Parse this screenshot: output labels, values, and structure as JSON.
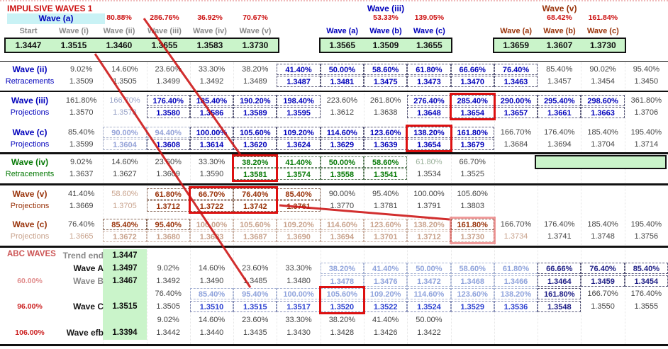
{
  "title": "IMPULSIVE WAVES 1",
  "colors": {
    "accent_red": "#cc1111",
    "blue": "#0000bb",
    "green": "#077a07",
    "brown": "#99330a",
    "green_bg": "#caf4ca",
    "cyan_bg": "#c9f2f5",
    "box_red": "#dd1111"
  },
  "top": {
    "waveA": {
      "label": "Wave (a)"
    },
    "group1": {
      "ratios": [
        "",
        "",
        "80.88%",
        "286.76%",
        "36.92%",
        "70.67%"
      ],
      "headers": [
        "Start",
        "Wave (i)",
        "Wave (ii)",
        "Wave (iii)",
        "Wave (iv)",
        "Wave (v)"
      ],
      "values": [
        "1.3447",
        "1.3515",
        "1.3460",
        "1.3655",
        "1.3583",
        "1.3730"
      ]
    },
    "group2": {
      "title": "Wave (iii)",
      "ratios": [
        "",
        "53.33%",
        "139.05%"
      ],
      "headers": [
        "Wave (a)",
        "Wave (b)",
        "Wave (c)"
      ],
      "values": [
        "1.3565",
        "1.3509",
        "1.3655"
      ]
    },
    "group3": {
      "title": "Wave (v)",
      "ratios": [
        "",
        "68.42%",
        "161.84%"
      ],
      "headers": [
        "Wave (a)",
        "Wave (b)",
        "Wave (c)"
      ],
      "values": [
        "1.3659",
        "1.3607",
        "1.3730"
      ]
    }
  },
  "sections": [
    {
      "label": "Wave (ii)",
      "sub": "Retracements",
      "theme": "blue",
      "pcts": [
        "9.02%",
        "14.60%",
        "23.60%",
        "33.30%",
        "38.20%",
        "41.40%",
        "50.00%",
        "58.60%",
        "61.80%",
        "66.66%",
        "76.40%",
        "85.40%",
        "90.02%",
        "95.40%"
      ],
      "pstyles": [
        "p",
        "p",
        "p",
        "p",
        "p",
        "b",
        "b",
        "b",
        "b",
        "b",
        "b",
        "p",
        "p",
        "p"
      ],
      "vals": [
        "1.3509",
        "1.3505",
        "1.3499",
        "1.3492",
        "1.3489",
        "1.3487",
        "1.3481",
        "1.3475",
        "1.3473",
        "1.3470",
        "1.3463",
        "1.3457",
        "1.3454",
        "1.3450"
      ],
      "vstyles": [
        "p",
        "p",
        "p",
        "p",
        "p",
        "b",
        "b",
        "b",
        "b",
        "b",
        "b",
        "p",
        "p",
        "p"
      ],
      "red": []
    },
    {
      "label": "Wave (iii)",
      "sub": "Projections",
      "theme": "blue",
      "pcts": [
        "161.80%",
        "166.70%",
        "176.40%",
        "185.40%",
        "190.20%",
        "198.40%",
        "223.60%",
        "261.80%",
        "276.40%",
        "285.40%",
        "290.00%",
        "295.40%",
        "298.60%",
        "361.80%"
      ],
      "pstyles": [
        "p",
        "m",
        "b",
        "b",
        "b",
        "b",
        "p",
        "p",
        "b",
        "b",
        "b",
        "b",
        "b",
        "p"
      ],
      "vals": [
        "1.3570",
        "1.3573",
        "1.3580",
        "1.3586",
        "1.3589",
        "1.3595",
        "1.3612",
        "1.3638",
        "1.3648",
        "1.3654",
        "1.3657",
        "1.3661",
        "1.3663",
        "1.3706"
      ],
      "vstyles": [
        "p",
        "m",
        "b",
        "b",
        "b",
        "b",
        "p",
        "p",
        "b",
        "b",
        "b",
        "b",
        "b",
        "p"
      ],
      "red": [
        {
          "from": 10,
          "to": 10
        }
      ]
    },
    {
      "label": "Wave (c)",
      "sub": "Projections",
      "theme": "blue",
      "pcts": [
        "85.40%",
        "90.00%",
        "94.40%",
        "100.00%",
        "105.60%",
        "109.20%",
        "114.60%",
        "123.60%",
        "138.20%",
        "161.80%",
        "166.70%",
        "176.40%",
        "185.40%",
        "195.40%"
      ],
      "pstyles": [
        "p",
        "mb",
        "mb",
        "b",
        "b",
        "b",
        "b",
        "b",
        "b",
        "b",
        "p",
        "p",
        "p",
        "p"
      ],
      "vals": [
        "1.3599",
        "1.3604",
        "1.3608",
        "1.3614",
        "1.3620",
        "1.3624",
        "1.3629",
        "1.3639",
        "1.3654",
        "1.3679",
        "1.3684",
        "1.3694",
        "1.3704",
        "1.3714"
      ],
      "vstyles": [
        "p",
        "mb",
        "b",
        "b",
        "b",
        "b",
        "b",
        "b",
        "b",
        "b",
        "p",
        "p",
        "p",
        "p"
      ],
      "red": [
        {
          "from": 9,
          "to": 9
        }
      ]
    },
    {
      "label": "Wave (iv)",
      "sub": "Retracements",
      "theme": "green",
      "greenBox": true,
      "pcts": [
        "9.02%",
        "14.60%",
        "23.60%",
        "33.30%",
        "38.20%",
        "41.40%",
        "50.00%",
        "58.60%",
        "61.80%",
        "66.70%"
      ],
      "pstyles": [
        "p",
        "p",
        "p",
        "p",
        "b",
        "b",
        "b",
        "b",
        "m",
        "p"
      ],
      "vals": [
        "1.3637",
        "1.3627",
        "1.3609",
        "1.3590",
        "1.3581",
        "1.3574",
        "1.3558",
        "1.3541",
        "1.3534",
        "1.3525"
      ],
      "vstyles": [
        "p",
        "p",
        "p",
        "p",
        "b",
        "b",
        "b",
        "b",
        "p",
        "p"
      ],
      "red": [
        {
          "from": 5,
          "to": 5
        }
      ]
    },
    {
      "label": "Wave (v)",
      "sub": "Projections",
      "theme": "brown",
      "pcts": [
        "41.40%",
        "58.60%",
        "61.80%",
        "66.70%",
        "76.40%",
        "85.40%",
        "90.00%",
        "95.40%",
        "100.00%",
        "105.60%"
      ],
      "pstyles": [
        "p",
        "m",
        "b",
        "b",
        "b",
        "b",
        "p",
        "p",
        "p",
        "p"
      ],
      "vals": [
        "1.3669",
        "1.3705",
        "1.3712",
        "1.3722",
        "1.3742",
        "1.3761",
        "1.3770",
        "1.3781",
        "1.3791",
        "1.3803"
      ],
      "vstyles": [
        "p",
        "m",
        "b",
        "b",
        "b",
        "b",
        "p",
        "p",
        "p",
        "p"
      ],
      "red": [
        {
          "from": 4,
          "to": 5
        }
      ]
    },
    {
      "label": "Wave (c)",
      "sub": "Projections",
      "theme": "brown",
      "subMuted": true,
      "pcts": [
        "76.40%",
        "85.40%",
        "95.40%",
        "100.00%",
        "105.60%",
        "109.20%",
        "114.60%",
        "123.60%",
        "138.20%",
        "161.80%",
        "166.70%",
        "176.40%",
        "185.40%",
        "195.40%"
      ],
      "pstyles": [
        "p",
        "b",
        "b",
        "mb",
        "mb",
        "mb",
        "mb",
        "mb",
        "mb",
        "b",
        "p",
        "p",
        "p",
        "p"
      ],
      "vals": [
        "1.3665",
        "1.3672",
        "1.3680",
        "1.3683",
        "1.3687",
        "1.3690",
        "1.3694",
        "1.3701",
        "1.3712",
        "1.3730",
        "1.3734",
        "1.3741",
        "1.3748",
        "1.3756"
      ],
      "vstyles": [
        "m",
        "mb",
        "mb",
        "mb",
        "mb",
        "mb",
        "mb",
        "mb",
        "mb",
        "mb",
        "m",
        "p",
        "p",
        "p"
      ],
      "red": [
        {
          "from": 10,
          "to": 10,
          "light": true
        }
      ]
    }
  ],
  "abc": {
    "label": "ABC WAVES",
    "rows": [
      {
        "kind": "head",
        "label": "Trend end",
        "labelTone": "gray",
        "value": "1.3447"
      },
      {
        "kind": "main",
        "label": "Wave A",
        "labelTone": "black",
        "value": "1.3497",
        "cells": [
          "9.02%",
          "14.60%",
          "23.60%",
          "33.30%",
          "38.20%",
          "41.40%",
          "50.00%",
          "58.60%",
          "61.80%",
          "66.66%",
          "76.40%",
          "85.40%"
        ],
        "styles": [
          "p",
          "p",
          "p",
          "p",
          "lb",
          "lb",
          "lb",
          "lb",
          "lb",
          "n",
          "n",
          "n"
        ]
      },
      {
        "kind": "main",
        "pct": "60.00%",
        "pctTone": "light",
        "label": "Wave B",
        "labelTone": "gray",
        "value": "1.3467",
        "cells": [
          "1.3492",
          "1.3490",
          "1.3485",
          "1.3480",
          "1.3478",
          "1.3476",
          "1.3472",
          "1.3468",
          "1.3466",
          "1.3464",
          "1.3459",
          "1.3454"
        ],
        "styles": [
          "p",
          "p",
          "p",
          "p",
          "lb",
          "lb",
          "lb",
          "lb",
          "lb",
          "n",
          "n",
          "n"
        ]
      },
      {
        "kind": "bare",
        "cells": [
          "76.40%",
          "85.40%",
          "95.40%",
          "100.00%",
          "105.60%",
          "109.20%",
          "114.60%",
          "123.60%",
          "138.20%",
          "161.80%",
          "166.70%",
          "176.40%"
        ],
        "styles": [
          "p",
          "lb",
          "lb",
          "lb",
          "lb",
          "lb",
          "lb",
          "lb",
          "lb",
          "n",
          "p",
          "p"
        ]
      },
      {
        "kind": "main",
        "pct": "96.00%",
        "label": "Wave C",
        "labelTone": "black",
        "value": "1.3515",
        "cells": [
          "1.3505",
          "1.3510",
          "1.3515",
          "1.3517",
          "1.3520",
          "1.3522",
          "1.3524",
          "1.3529",
          "1.3536",
          "1.3548",
          "1.3550",
          "1.3555"
        ],
        "styles": [
          "p",
          "ab",
          "ab",
          "ab",
          "ab",
          "ab",
          "ab",
          "ab",
          "ab",
          "n",
          "p",
          "p"
        ]
      },
      {
        "kind": "bare",
        "cells": [
          "9.02%",
          "14.60%",
          "23.60%",
          "33.30%",
          "38.20%",
          "41.40%",
          "50.00%"
        ],
        "styles": [
          "p",
          "p",
          "p",
          "p",
          "p",
          "p",
          "p"
        ]
      },
      {
        "kind": "main",
        "pct": "106.00%",
        "label": "Wave efb",
        "labelTone": "black",
        "value": "1.3394",
        "cells": [
          "1.3442",
          "1.3440",
          "1.3435",
          "1.3430",
          "1.3428",
          "1.3426",
          "1.3422"
        ],
        "styles": [
          "p",
          "p",
          "p",
          "p",
          "p",
          "p",
          "p"
        ]
      }
    ],
    "red_highlight_col": 5
  },
  "annotation_lines": [
    [
      203,
      24,
      340,
      218
    ],
    [
      134,
      74,
      353,
      404
    ],
    [
      394,
      288,
      634,
      308
    ]
  ]
}
